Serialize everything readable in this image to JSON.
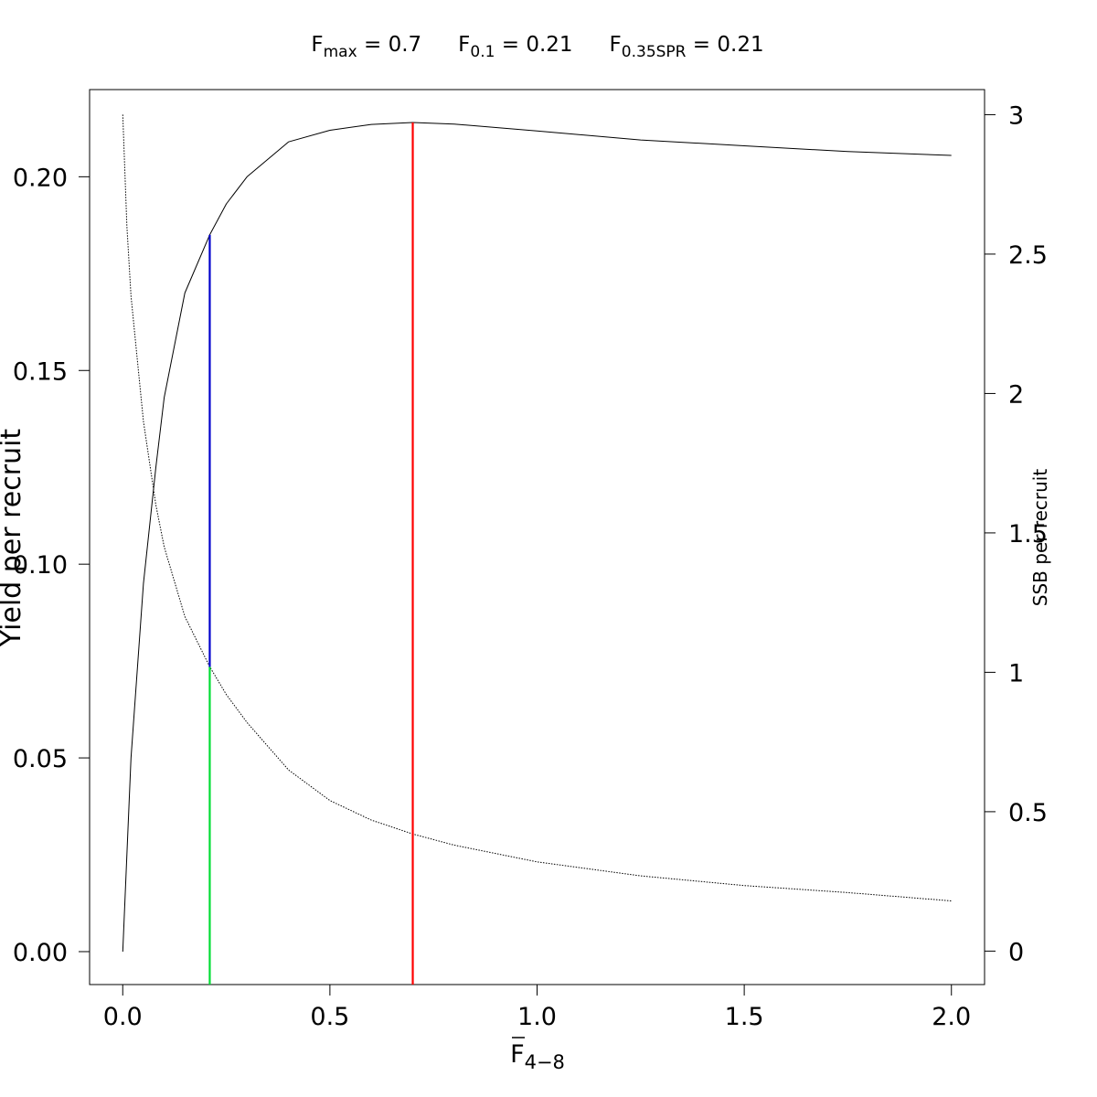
{
  "chart_data": {
    "type": "line",
    "header": {
      "items": [
        {
          "base": "F",
          "sub": "max",
          "rest": " = 0.7"
        },
        {
          "base": "F",
          "sub": "0.1",
          "rest": " = 0.21"
        },
        {
          "base": "F",
          "sub": "0.35SPR",
          "rest": " = 0.21"
        }
      ]
    },
    "xlabel": {
      "base": "F",
      "sub": "4−8"
    },
    "ylabel_left": "Yield per recruit",
    "ylabel_right": "SSB per recruit",
    "xlim": [
      -0.08,
      2.08
    ],
    "ylim_left": [
      -0.0085,
      0.2225
    ],
    "ylim_right": [
      -0.12,
      3.09
    ],
    "x_ticks": [
      "0.0",
      "0.5",
      "1.0",
      "1.5",
      "2.0"
    ],
    "x_tick_values": [
      0,
      0.5,
      1.0,
      1.5,
      2.0
    ],
    "y_left_ticks": [
      "0.00",
      "0.05",
      "0.10",
      "0.15",
      "0.20"
    ],
    "y_left_tick_values": [
      0,
      0.05,
      0.1,
      0.15,
      0.2
    ],
    "y_right_ticks": [
      "0",
      "0.5",
      "1",
      "1.5",
      "2",
      "2.5",
      "3"
    ],
    "y_right_tick_values": [
      0,
      0.5,
      1,
      1.5,
      2,
      2.5,
      3
    ],
    "series": [
      {
        "axis": "left",
        "style": "solid",
        "color": "#000000",
        "points": [
          [
            0.0,
            0.0
          ],
          [
            0.02,
            0.05
          ],
          [
            0.05,
            0.095
          ],
          [
            0.08,
            0.125
          ],
          [
            0.1,
            0.143
          ],
          [
            0.15,
            0.17
          ],
          [
            0.21,
            0.185
          ],
          [
            0.25,
            0.193
          ],
          [
            0.3,
            0.2
          ],
          [
            0.4,
            0.209
          ],
          [
            0.5,
            0.212
          ],
          [
            0.6,
            0.2135
          ],
          [
            0.7,
            0.214
          ],
          [
            0.8,
            0.2136
          ],
          [
            1.0,
            0.2118
          ],
          [
            1.25,
            0.2095
          ],
          [
            1.5,
            0.208
          ],
          [
            1.75,
            0.2065
          ],
          [
            2.0,
            0.2055
          ]
        ]
      },
      {
        "axis": "right",
        "style": "dotted",
        "color": "#000000",
        "points": [
          [
            0.0,
            3.0
          ],
          [
            0.01,
            2.6
          ],
          [
            0.02,
            2.35
          ],
          [
            0.05,
            1.9
          ],
          [
            0.08,
            1.6
          ],
          [
            0.1,
            1.45
          ],
          [
            0.15,
            1.2
          ],
          [
            0.21,
            1.02
          ],
          [
            0.25,
            0.92
          ],
          [
            0.3,
            0.82
          ],
          [
            0.4,
            0.65
          ],
          [
            0.5,
            0.54
          ],
          [
            0.6,
            0.47
          ],
          [
            0.7,
            0.42
          ],
          [
            0.8,
            0.38
          ],
          [
            1.0,
            0.32
          ],
          [
            1.25,
            0.27
          ],
          [
            1.5,
            0.235
          ],
          [
            1.75,
            0.21
          ],
          [
            2.0,
            0.18
          ]
        ]
      }
    ],
    "reference_lines": [
      {
        "name": "Fmax",
        "x": 0.7,
        "y_from": "bottom",
        "y_to_left": 0.214,
        "color": "#ff0000"
      },
      {
        "name": "F0.1",
        "x": 0.21,
        "y_from_left": 0.0735,
        "y_to_left": 0.185,
        "color": "#0000cc"
      },
      {
        "name": "F0.35SPR",
        "x": 0.21,
        "y_from": "bottom",
        "y_to_left": 0.0735,
        "color": "#00dd33"
      }
    ]
  }
}
